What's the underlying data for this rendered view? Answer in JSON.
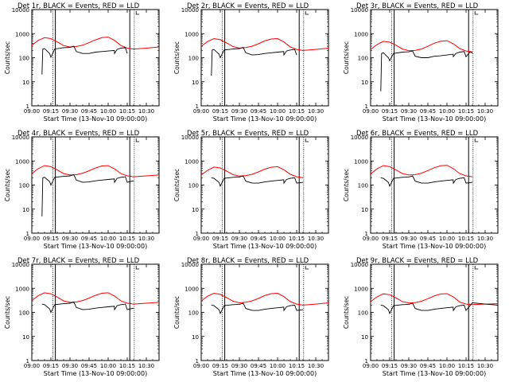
{
  "chart_data": [
    {
      "title": "Det 1r, BLACK = Events, RED = LLD",
      "type": "line",
      "yscale": "log",
      "ylim": [
        1,
        10000
      ],
      "x_tick_labels": [
        "09:00",
        "09:15",
        "09:30",
        "09:45",
        "10:00",
        "10:15",
        "10:30"
      ],
      "y_tick_labels": [
        "1",
        "10",
        "100",
        "1000",
        "10000"
      ],
      "ylabel": "Counts/sec",
      "xlabel": "Start Time (13-Nov-10 09:00:00)",
      "series": [
        {
          "color": "#ff0000",
          "x": [
            0,
            5,
            10,
            15,
            20,
            25,
            30,
            35,
            40,
            45,
            50,
            55,
            60,
            65,
            70,
            75,
            80,
            90,
            100
          ],
          "values": [
            330,
            520,
            680,
            620,
            450,
            320,
            280,
            290,
            330,
            420,
            550,
            680,
            720,
            520,
            320,
            250,
            230,
            250,
            280
          ]
        },
        {
          "color": "#000000",
          "x": [
            8,
            8.6,
            10,
            14,
            15,
            18,
            25,
            30,
            33,
            35,
            40,
            45,
            50,
            55,
            60,
            64.9,
            65,
            67,
            70,
            73.5,
            75
          ],
          "values": [
            20,
            230,
            240,
            150,
            105,
            230,
            260,
            270,
            300,
            180,
            150,
            150,
            170,
            180,
            190,
            200,
            150,
            220,
            250,
            260,
            150
          ]
        }
      ]
    },
    {
      "title": "Det 2r, BLACK = Events, RED = LLD",
      "type": "line",
      "yscale": "log",
      "ylim": [
        1,
        10000
      ],
      "x_tick_labels": [
        "09:00",
        "09:15",
        "09:30",
        "09:45",
        "10:00",
        "10:15",
        "10:30"
      ],
      "y_tick_labels": [
        "1",
        "10",
        "100",
        "1000",
        "10000"
      ],
      "ylabel": "Counts/sec",
      "xlabel": "Start Time (13-Nov-10 09:00:00)",
      "series": [
        {
          "color": "#ff0000",
          "x": [
            0,
            5,
            10,
            15,
            20,
            25,
            30,
            35,
            40,
            45,
            50,
            55,
            60,
            65,
            70,
            75,
            80,
            90,
            100
          ],
          "values": [
            300,
            470,
            620,
            560,
            410,
            290,
            250,
            265,
            300,
            380,
            500,
            600,
            620,
            450,
            280,
            220,
            200,
            220,
            250
          ]
        },
        {
          "color": "#000000",
          "x": [
            8,
            8.6,
            10,
            14,
            15,
            18,
            25,
            30,
            33,
            35,
            40,
            45,
            50,
            55,
            60,
            64.9,
            65,
            67,
            70,
            73.5,
            75
          ],
          "values": [
            18,
            210,
            220,
            140,
            100,
            210,
            230,
            240,
            270,
            160,
            130,
            135,
            150,
            160,
            170,
            180,
            130,
            190,
            210,
            220,
            130
          ]
        }
      ]
    },
    {
      "title": "Det 3r, BLACK = Events, RED = LLD",
      "type": "line",
      "yscale": "log",
      "ylim": [
        1,
        10000
      ],
      "x_tick_labels": [
        "09:00",
        "09:15",
        "09:30",
        "09:45",
        "10:00",
        "10:15",
        "10:30"
      ],
      "y_tick_labels": [
        "1",
        "10",
        "100",
        "1000",
        "10000"
      ],
      "ylabel": "Counts/sec",
      "xlabel": "Start Time (13-Nov-10 09:00:00)",
      "series": [
        {
          "color": "#ff0000",
          "x": [
            0,
            5,
            10,
            15,
            20,
            25,
            30,
            35,
            40,
            45,
            50,
            55,
            60,
            65,
            70,
            75,
            80
          ],
          "values": [
            220,
            350,
            480,
            440,
            330,
            230,
            195,
            200,
            230,
            300,
            400,
            480,
            510,
            380,
            240,
            190,
            175
          ]
        },
        {
          "color": "#000000",
          "x": [
            8,
            8.6,
            10,
            14,
            15,
            18,
            25,
            30,
            33,
            35,
            40,
            45,
            50,
            55,
            60,
            64.9,
            65,
            67,
            70,
            73.5,
            75,
            78,
            80
          ],
          "values": [
            4,
            150,
            160,
            100,
            75,
            150,
            170,
            175,
            190,
            115,
            100,
            100,
            115,
            120,
            130,
            140,
            110,
            150,
            170,
            180,
            110,
            170,
            160
          ]
        }
      ]
    },
    {
      "title": "Det 4r, BLACK = Events, RED = LLD",
      "type": "line",
      "yscale": "log",
      "ylim": [
        1,
        10000
      ],
      "x_tick_labels": [
        "09:00",
        "09:15",
        "09:30",
        "09:45",
        "10:00",
        "10:15",
        "10:30"
      ],
      "y_tick_labels": [
        "1",
        "10",
        "100",
        "1000",
        "10000"
      ],
      "ylabel": "Counts/sec",
      "xlabel": "Start Time (13-Nov-10 09:00:00)",
      "series": [
        {
          "color": "#ff0000",
          "x": [
            0,
            5,
            10,
            15,
            20,
            25,
            30,
            35,
            40,
            45,
            50,
            55,
            60,
            65,
            70,
            75,
            80,
            90,
            100
          ],
          "values": [
            300,
            480,
            640,
            580,
            420,
            300,
            260,
            270,
            310,
            390,
            510,
            620,
            640,
            470,
            300,
            240,
            220,
            240,
            260
          ]
        },
        {
          "color": "#000000",
          "x": [
            8,
            8.6,
            10,
            14,
            15,
            18,
            25,
            30,
            33,
            35,
            40,
            45,
            50,
            55,
            60,
            64.9,
            65,
            67,
            70,
            73.5,
            75,
            80
          ],
          "values": [
            5,
            200,
            210,
            140,
            100,
            210,
            230,
            240,
            270,
            160,
            130,
            135,
            150,
            160,
            170,
            180,
            130,
            190,
            210,
            220,
            130,
            150
          ]
        }
      ]
    },
    {
      "title": "Det 5r, BLACK = Events, RED = LLD",
      "type": "line",
      "yscale": "log",
      "ylim": [
        1,
        10000
      ],
      "x_tick_labels": [
        "09:00",
        "09:15",
        "09:30",
        "09:45",
        "10:00",
        "10:15",
        "10:30"
      ],
      "y_tick_labels": [
        "1",
        "10",
        "100",
        "1000",
        "10000"
      ],
      "ylabel": "Counts/sec",
      "xlabel": "Start Time (13-Nov-10 09:00:00)",
      "series": [
        {
          "color": "#ff0000",
          "x": [
            0,
            5,
            10,
            15,
            20,
            25,
            30,
            35,
            40,
            45,
            50,
            55,
            60,
            65,
            70,
            75,
            80
          ],
          "values": [
            260,
            410,
            560,
            510,
            380,
            270,
            235,
            245,
            280,
            350,
            460,
            550,
            580,
            430,
            280,
            220,
            200
          ]
        },
        {
          "color": "#000000",
          "x": [
            8,
            10,
            14,
            15,
            18,
            25,
            30,
            33,
            35,
            40,
            45,
            50,
            55,
            60,
            64.9,
            65,
            67,
            70,
            73.5,
            75,
            80
          ],
          "values": [
            200,
            190,
            130,
            90,
            190,
            210,
            215,
            240,
            145,
            120,
            120,
            135,
            145,
            155,
            165,
            120,
            170,
            190,
            200,
            120,
            130
          ]
        }
      ]
    },
    {
      "title": "Det 6r, BLACK = Events, RED = LLD",
      "type": "line",
      "yscale": "log",
      "ylim": [
        1,
        10000
      ],
      "x_tick_labels": [
        "09:00",
        "09:15",
        "09:30",
        "09:45",
        "10:00",
        "10:15",
        "10:30"
      ],
      "y_tick_labels": [
        "1",
        "10",
        "100",
        "1000",
        "10000"
      ],
      "ylabel": "Counts/sec",
      "xlabel": "Start Time (13-Nov-10 09:00:00)",
      "series": [
        {
          "color": "#ff0000",
          "x": [
            0,
            5,
            10,
            15,
            20,
            25,
            30,
            35,
            40,
            45,
            50,
            55,
            60,
            65,
            70,
            75,
            80
          ],
          "values": [
            290,
            470,
            640,
            580,
            420,
            300,
            260,
            270,
            310,
            400,
            520,
            630,
            660,
            480,
            300,
            240,
            220
          ]
        },
        {
          "color": "#000000",
          "x": [
            8,
            10,
            14,
            15,
            18,
            25,
            30,
            33,
            35,
            40,
            45,
            50,
            55,
            60,
            64.9,
            65,
            67,
            70,
            73.5,
            75,
            80
          ],
          "values": [
            200,
            190,
            130,
            90,
            190,
            210,
            215,
            240,
            145,
            120,
            120,
            135,
            145,
            155,
            165,
            120,
            170,
            190,
            200,
            120,
            130
          ]
        }
      ]
    },
    {
      "title": "Det 7r, BLACK = Events, RED = LLD",
      "type": "line",
      "yscale": "log",
      "ylim": [
        1,
        10000
      ],
      "x_tick_labels": [
        "09:00",
        "09:15",
        "09:30",
        "09:45",
        "10:00",
        "10:15",
        "10:30"
      ],
      "y_tick_labels": [
        "1",
        "10",
        "100",
        "1000",
        "10000"
      ],
      "ylabel": "Counts/sec",
      "xlabel": "Start Time (13-Nov-10 09:00:00)",
      "series": [
        {
          "color": "#ff0000",
          "x": [
            0,
            5,
            10,
            15,
            20,
            25,
            30,
            35,
            40,
            45,
            50,
            55,
            60,
            65,
            70,
            75,
            80,
            90,
            100
          ],
          "values": [
            310,
            490,
            650,
            590,
            430,
            300,
            260,
            270,
            310,
            390,
            510,
            620,
            650,
            480,
            300,
            240,
            220,
            240,
            260
          ]
        },
        {
          "color": "#000000",
          "x": [
            8,
            10,
            14,
            15,
            18,
            25,
            30,
            33,
            35,
            40,
            45,
            50,
            55,
            60,
            64.9,
            65,
            67,
            70,
            73.5,
            75,
            80
          ],
          "values": [
            220,
            210,
            140,
            100,
            210,
            230,
            240,
            270,
            160,
            130,
            135,
            150,
            160,
            170,
            180,
            130,
            190,
            210,
            220,
            130,
            150
          ]
        }
      ]
    },
    {
      "title": "Det 8r, BLACK = Events, RED = LLD",
      "type": "line",
      "yscale": "log",
      "ylim": [
        1,
        10000
      ],
      "x_tick_labels": [
        "09:00",
        "09:15",
        "09:30",
        "09:45",
        "10:00",
        "10:15",
        "10:30"
      ],
      "y_tick_labels": [
        "1",
        "10",
        "100",
        "1000",
        "10000"
      ],
      "ylabel": "Counts/sec",
      "xlabel": "Start Time (13-Nov-10 09:00:00)",
      "series": [
        {
          "color": "#ff0000",
          "x": [
            0,
            5,
            10,
            15,
            20,
            25,
            30,
            35,
            40,
            45,
            50,
            55,
            60,
            65,
            70,
            75,
            80,
            90,
            100
          ],
          "values": [
            300,
            470,
            620,
            560,
            410,
            290,
            250,
            265,
            300,
            380,
            500,
            600,
            620,
            450,
            280,
            220,
            200,
            220,
            250
          ]
        },
        {
          "color": "#000000",
          "x": [
            8,
            10,
            14,
            15,
            18,
            25,
            30,
            33,
            35,
            40,
            45,
            50,
            55,
            60,
            64.9,
            65,
            67,
            70,
            73.5,
            75,
            80
          ],
          "values": [
            200,
            190,
            130,
            90,
            190,
            210,
            215,
            240,
            145,
            120,
            120,
            135,
            145,
            155,
            165,
            120,
            170,
            190,
            200,
            120,
            130
          ]
        }
      ]
    },
    {
      "title": "Det 9r, BLACK = Events, RED = LLD",
      "type": "line",
      "yscale": "log",
      "ylim": [
        1,
        10000
      ],
      "x_tick_labels": [
        "09:00",
        "09:15",
        "09:30",
        "09:45",
        "10:00",
        "10:15",
        "10:30"
      ],
      "y_tick_labels": [
        "1",
        "10",
        "100",
        "1000",
        "10000"
      ],
      "ylabel": "Counts/sec",
      "xlabel": "Start Time (13-Nov-10 09:00:00)",
      "series": [
        {
          "color": "#ff0000",
          "x": [
            0,
            5,
            10,
            15,
            20,
            25,
            30,
            35,
            40,
            45,
            50,
            55,
            60,
            65,
            70,
            75,
            80,
            90,
            100
          ],
          "values": [
            280,
            440,
            590,
            540,
            400,
            280,
            245,
            255,
            290,
            370,
            480,
            580,
            600,
            440,
            270,
            220,
            210,
            220,
            230
          ]
        },
        {
          "color": "#000000",
          "x": [
            8,
            10,
            14,
            15,
            18,
            25,
            30,
            33,
            35,
            40,
            45,
            50,
            55,
            60,
            64.9,
            65,
            67,
            70,
            73.5,
            75,
            80,
            90,
            100
          ],
          "values": [
            200,
            190,
            130,
            90,
            190,
            210,
            215,
            240,
            145,
            120,
            120,
            135,
            145,
            155,
            165,
            120,
            170,
            190,
            200,
            120,
            250,
            220,
            200
          ]
        }
      ]
    }
  ]
}
